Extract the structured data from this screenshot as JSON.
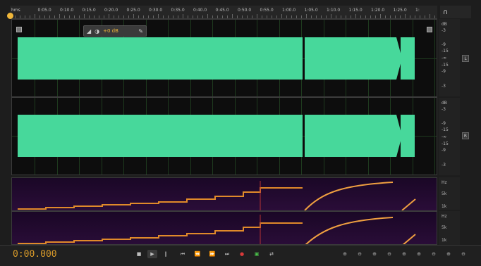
{
  "ruler": {
    "labels": [
      "hms",
      "0:05.0",
      "0:10.0",
      "0:15.0",
      "0:20.0",
      "0:25.0",
      "0:30.0",
      "0:35.0",
      "0:40.0",
      "0:45.0",
      "0:50.0",
      "0:55.0",
      "1:00.0",
      "1:05.0",
      "1:10.0",
      "1:15.0",
      "1:20.0",
      "1:25.0",
      "1:"
    ]
  },
  "hud": {
    "volume_label": "+0 dB"
  },
  "db_scale_top": [
    "dB",
    "-3",
    "-9",
    "-15",
    "-∞",
    "-15",
    "-9",
    "-3"
  ],
  "db_scale_bottom": [
    "dB",
    "-3",
    "-9",
    "-15",
    "-∞",
    "-15",
    "-9",
    "-3"
  ],
  "channel_buttons": {
    "left": "L",
    "right": "R"
  },
  "hz_scale_top": [
    "Hz",
    "5k",
    "1k"
  ],
  "hz_scale_bottom": [
    "Hz",
    "5k",
    "1k"
  ],
  "transport": {
    "timecode": "0:00.000",
    "buttons": [
      "■",
      "▶",
      "‖",
      "⏮",
      "⏪",
      "⏩",
      "⏭",
      "●",
      "▣",
      "⇄"
    ]
  },
  "zoom_buttons": [
    "⊕",
    "⊖",
    "⊕",
    "⊖",
    "⊕",
    "⊕",
    "⊖",
    "⊕",
    "⊖"
  ],
  "colors": {
    "waveform": "#47d89b",
    "accent": "#f0b73a",
    "record": "#d83a3a",
    "loop": "#4ac24a"
  }
}
